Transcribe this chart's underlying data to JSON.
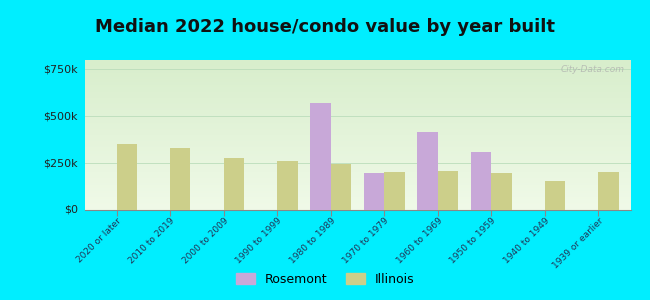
{
  "title": "Median 2022 house/condo value by year built",
  "categories": [
    "2020 or later",
    "2010 to 2019",
    "2000 to 2009",
    "1990 to 1999",
    "1980 to 1989",
    "1970 to 1979",
    "1960 to 1969",
    "1950 to 1959",
    "1940 to 1949",
    "1939 or earlier"
  ],
  "rosemont": [
    0,
    0,
    0,
    0,
    570000,
    195000,
    415000,
    310000,
    0,
    0
  ],
  "illinois": [
    350000,
    330000,
    280000,
    260000,
    245000,
    205000,
    210000,
    195000,
    155000,
    205000
  ],
  "rosemont_color": "#c8a8d8",
  "illinois_color": "#cccf8a",
  "bg_outer": "#00eeff",
  "bg_chart": "#e0f0e0",
  "ylim": [
    0,
    800000
  ],
  "yticks": [
    0,
    250000,
    500000,
    750000
  ],
  "ytick_labels": [
    "$0",
    "$250k",
    "$500k",
    "$750k"
  ],
  "bar_width": 0.38,
  "legend_labels": [
    "Rosemont",
    "Illinois"
  ],
  "title_fontsize": 13,
  "watermark": "City-Data.com"
}
